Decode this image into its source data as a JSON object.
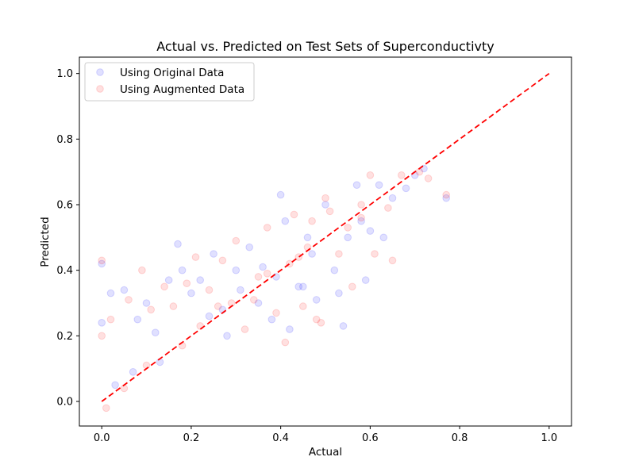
{
  "chart_data": {
    "type": "scatter",
    "title": "Actual vs. Predicted on Test Sets of Superconductivty",
    "xlabel": "Actual",
    "ylabel": "Predicted",
    "xlim": [
      -0.05,
      1.05
    ],
    "ylim": [
      -0.075,
      1.05
    ],
    "xticks": [
      "0.0",
      "0.2",
      "0.4",
      "0.6",
      "0.8",
      "1.0"
    ],
    "yticks": [
      "0.0",
      "0.2",
      "0.4",
      "0.6",
      "0.8",
      "1.0"
    ],
    "grid": false,
    "legend_position": "top-left",
    "reference_line": {
      "x": [
        0,
        1
      ],
      "y": [
        0,
        1
      ],
      "color": "#ff0000",
      "style": "dashed"
    },
    "series": [
      {
        "name": "Using Original Data",
        "color": "#0000ff",
        "alpha": 0.12,
        "points": [
          [
            0.0,
            0.42
          ],
          [
            0.0,
            0.24
          ],
          [
            0.02,
            0.33
          ],
          [
            0.05,
            0.34
          ],
          [
            0.08,
            0.25
          ],
          [
            0.1,
            0.3
          ],
          [
            0.12,
            0.21
          ],
          [
            0.15,
            0.37
          ],
          [
            0.17,
            0.48
          ],
          [
            0.18,
            0.4
          ],
          [
            0.2,
            0.33
          ],
          [
            0.22,
            0.37
          ],
          [
            0.25,
            0.45
          ],
          [
            0.28,
            0.2
          ],
          [
            0.3,
            0.4
          ],
          [
            0.33,
            0.47
          ],
          [
            0.35,
            0.3
          ],
          [
            0.38,
            0.25
          ],
          [
            0.4,
            0.63
          ],
          [
            0.41,
            0.55
          ],
          [
            0.42,
            0.22
          ],
          [
            0.44,
            0.35
          ],
          [
            0.46,
            0.5
          ],
          [
            0.48,
            0.31
          ],
          [
            0.5,
            0.6
          ],
          [
            0.52,
            0.4
          ],
          [
            0.54,
            0.23
          ],
          [
            0.55,
            0.5
          ],
          [
            0.57,
            0.66
          ],
          [
            0.58,
            0.55
          ],
          [
            0.59,
            0.37
          ],
          [
            0.6,
            0.52
          ],
          [
            0.62,
            0.66
          ],
          [
            0.63,
            0.5
          ],
          [
            0.65,
            0.62
          ],
          [
            0.68,
            0.65
          ],
          [
            0.7,
            0.69
          ],
          [
            0.72,
            0.71
          ],
          [
            0.77,
            0.62
          ],
          [
            0.45,
            0.35
          ],
          [
            0.36,
            0.41
          ],
          [
            0.27,
            0.28
          ],
          [
            0.13,
            0.12
          ],
          [
            0.07,
            0.09
          ],
          [
            0.03,
            0.05
          ],
          [
            0.24,
            0.26
          ],
          [
            0.31,
            0.34
          ],
          [
            0.39,
            0.38
          ],
          [
            0.47,
            0.45
          ],
          [
            0.53,
            0.33
          ]
        ]
      },
      {
        "name": "Using Augmented Data",
        "color": "#ff0000",
        "alpha": 0.12,
        "points": [
          [
            0.0,
            0.43
          ],
          [
            0.0,
            0.2
          ],
          [
            0.02,
            0.25
          ],
          [
            0.06,
            0.31
          ],
          [
            0.09,
            0.4
          ],
          [
            0.11,
            0.28
          ],
          [
            0.14,
            0.35
          ],
          [
            0.16,
            0.29
          ],
          [
            0.19,
            0.36
          ],
          [
            0.21,
            0.44
          ],
          [
            0.24,
            0.34
          ],
          [
            0.27,
            0.43
          ],
          [
            0.3,
            0.49
          ],
          [
            0.32,
            0.22
          ],
          [
            0.35,
            0.38
          ],
          [
            0.37,
            0.53
          ],
          [
            0.39,
            0.27
          ],
          [
            0.41,
            0.18
          ],
          [
            0.43,
            0.57
          ],
          [
            0.45,
            0.29
          ],
          [
            0.47,
            0.55
          ],
          [
            0.49,
            0.24
          ],
          [
            0.5,
            0.62
          ],
          [
            0.51,
            0.58
          ],
          [
            0.53,
            0.45
          ],
          [
            0.56,
            0.35
          ],
          [
            0.58,
            0.6
          ],
          [
            0.6,
            0.69
          ],
          [
            0.61,
            0.45
          ],
          [
            0.64,
            0.59
          ],
          [
            0.65,
            0.43
          ],
          [
            0.67,
            0.69
          ],
          [
            0.71,
            0.7
          ],
          [
            0.73,
            0.68
          ],
          [
            0.77,
            0.63
          ],
          [
            0.48,
            0.25
          ],
          [
            0.44,
            0.44
          ],
          [
            0.34,
            0.31
          ],
          [
            0.26,
            0.29
          ],
          [
            0.18,
            0.17
          ],
          [
            0.1,
            0.11
          ],
          [
            0.05,
            0.04
          ],
          [
            0.01,
            -0.02
          ],
          [
            0.22,
            0.23
          ],
          [
            0.29,
            0.3
          ],
          [
            0.37,
            0.39
          ],
          [
            0.42,
            0.42
          ],
          [
            0.46,
            0.47
          ],
          [
            0.55,
            0.53
          ],
          [
            0.58,
            0.56
          ]
        ]
      }
    ]
  }
}
